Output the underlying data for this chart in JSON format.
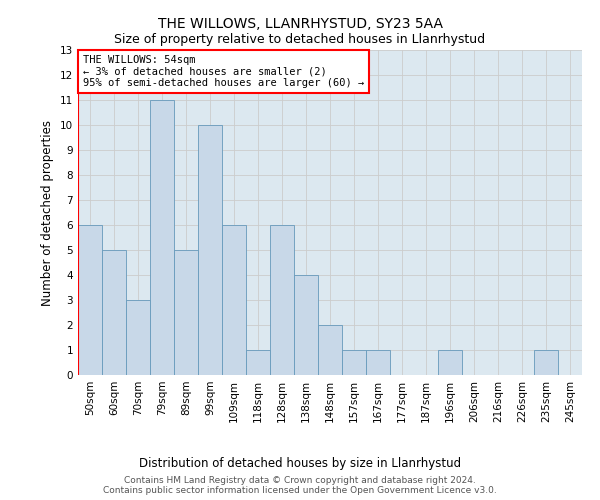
{
  "title": "THE WILLOWS, LLANRHYSTUD, SY23 5AA",
  "subtitle": "Size of property relative to detached houses in Llanrhystud",
  "xlabel": "Distribution of detached houses by size in Llanrhystud",
  "ylabel": "Number of detached properties",
  "categories": [
    "50sqm",
    "60sqm",
    "70sqm",
    "79sqm",
    "89sqm",
    "99sqm",
    "109sqm",
    "118sqm",
    "128sqm",
    "138sqm",
    "148sqm",
    "157sqm",
    "167sqm",
    "177sqm",
    "187sqm",
    "196sqm",
    "206sqm",
    "216sqm",
    "226sqm",
    "235sqm",
    "245sqm"
  ],
  "values": [
    6,
    5,
    3,
    11,
    5,
    10,
    6,
    1,
    6,
    4,
    2,
    1,
    1,
    0,
    0,
    1,
    0,
    0,
    0,
    1,
    0
  ],
  "bar_color": "#c8d8e8",
  "bar_edge_color": "#6699bb",
  "annotation_text": "THE WILLOWS: 54sqm\n← 3% of detached houses are smaller (2)\n95% of semi-detached houses are larger (60) →",
  "annotation_box_color": "white",
  "annotation_box_edge_color": "red",
  "vline_color": "red",
  "ylim": [
    0,
    13
  ],
  "yticks": [
    0,
    1,
    2,
    3,
    4,
    5,
    6,
    7,
    8,
    9,
    10,
    11,
    12,
    13
  ],
  "grid_color": "#cccccc",
  "background_color": "#dce8f0",
  "footer_line1": "Contains HM Land Registry data © Crown copyright and database right 2024.",
  "footer_line2": "Contains public sector information licensed under the Open Government Licence v3.0.",
  "title_fontsize": 10,
  "subtitle_fontsize": 9,
  "axis_label_fontsize": 8.5,
  "tick_fontsize": 7.5,
  "annotation_fontsize": 7.5,
  "footer_fontsize": 6.5
}
